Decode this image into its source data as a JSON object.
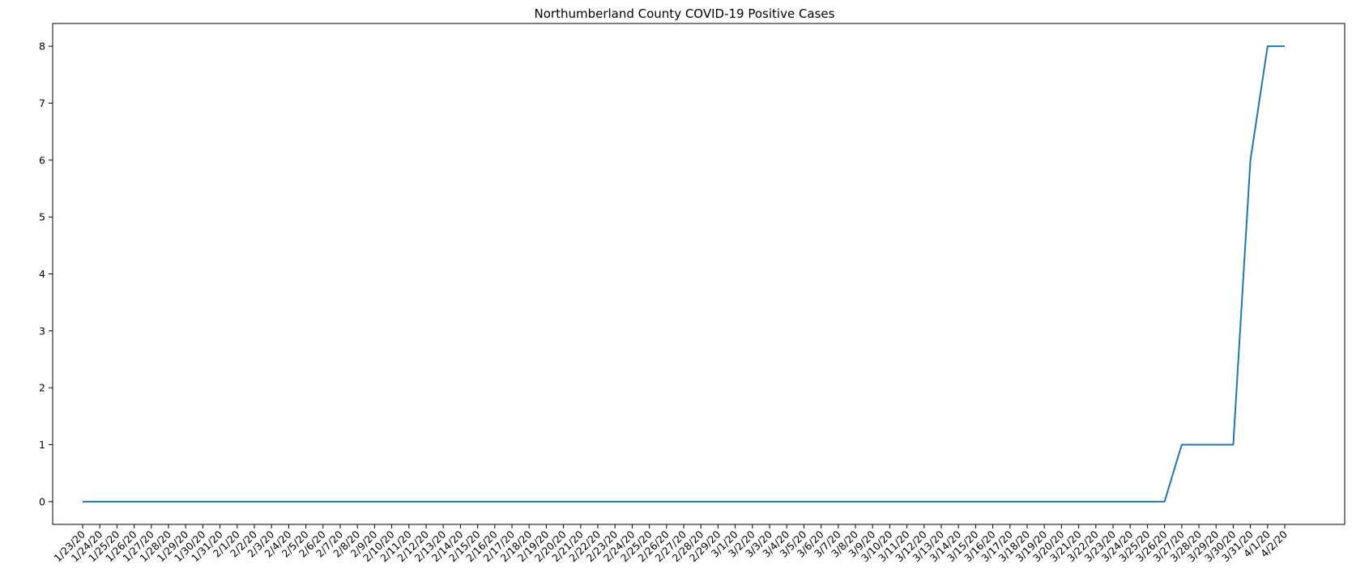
{
  "chart_data": {
    "type": "line",
    "title": "Northumberland County COVID-19 Positive Cases",
    "xlabel": "",
    "ylabel": "",
    "categories": [
      "1/23/20",
      "1/24/20",
      "1/25/20",
      "1/26/20",
      "1/27/20",
      "1/28/20",
      "1/29/20",
      "1/30/20",
      "1/31/20",
      "2/1/20",
      "2/2/20",
      "2/3/20",
      "2/4/20",
      "2/5/20",
      "2/6/20",
      "2/7/20",
      "2/8/20",
      "2/9/20",
      "2/10/20",
      "2/11/20",
      "2/12/20",
      "2/13/20",
      "2/14/20",
      "2/15/20",
      "2/16/20",
      "2/17/20",
      "2/18/20",
      "2/19/20",
      "2/20/20",
      "2/21/20",
      "2/22/20",
      "2/23/20",
      "2/24/20",
      "2/25/20",
      "2/26/20",
      "2/27/20",
      "2/28/20",
      "2/29/20",
      "3/1/20",
      "3/2/20",
      "3/3/20",
      "3/4/20",
      "3/5/20",
      "3/6/20",
      "3/7/20",
      "3/8/20",
      "3/9/20",
      "3/10/20",
      "3/11/20",
      "3/12/20",
      "3/13/20",
      "3/14/20",
      "3/15/20",
      "3/16/20",
      "3/17/20",
      "3/18/20",
      "3/19/20",
      "3/20/20",
      "3/21/20",
      "3/22/20",
      "3/23/20",
      "3/24/20",
      "3/25/20",
      "3/26/20",
      "3/27/20",
      "3/28/20",
      "3/29/20",
      "3/30/20",
      "3/31/20",
      "4/1/20",
      "4/2/20"
    ],
    "series": [
      {
        "color": "#1f77b4",
        "values": [
          0,
          0,
          0,
          0,
          0,
          0,
          0,
          0,
          0,
          0,
          0,
          0,
          0,
          0,
          0,
          0,
          0,
          0,
          0,
          0,
          0,
          0,
          0,
          0,
          0,
          0,
          0,
          0,
          0,
          0,
          0,
          0,
          0,
          0,
          0,
          0,
          0,
          0,
          0,
          0,
          0,
          0,
          0,
          0,
          0,
          0,
          0,
          0,
          0,
          0,
          0,
          0,
          0,
          0,
          0,
          0,
          0,
          0,
          0,
          0,
          0,
          0,
          0,
          0,
          1,
          1,
          1,
          1,
          6,
          8,
          8
        ]
      }
    ],
    "ylim": [
      -0.4,
      8.4
    ],
    "yticks": [
      0,
      1,
      2,
      3,
      4,
      5,
      6,
      7,
      8
    ],
    "grid": false,
    "legend": "none"
  }
}
